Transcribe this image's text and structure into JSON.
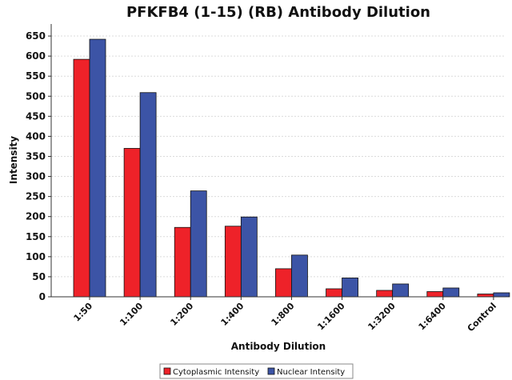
{
  "chart_data": {
    "type": "bar",
    "title": "PFKFB4 (1-15) (RB) Antibody Dilution",
    "xlabel": "Antibody Dilution",
    "ylabel": "Intensity",
    "ylim": [
      0,
      680
    ],
    "yticks": [
      0,
      50,
      100,
      150,
      200,
      250,
      300,
      350,
      400,
      450,
      500,
      550,
      600,
      650
    ],
    "grid": true,
    "legend_position": "bottom",
    "categories": [
      "1:50",
      "1:100",
      "1:200",
      "1:400",
      "1:800",
      "1:1600",
      "1:3200",
      "1:6400",
      "Control"
    ],
    "series": [
      {
        "name": "Cytoplasmic Intensity",
        "color": "#ee2229",
        "values": [
          592,
          370,
          173,
          176,
          70,
          20,
          16,
          13,
          7
        ]
      },
      {
        "name": "Nuclear Intensity",
        "color": "#3c54a6",
        "values": [
          642,
          509,
          264,
          199,
          104,
          47,
          32,
          22,
          10
        ]
      }
    ]
  }
}
